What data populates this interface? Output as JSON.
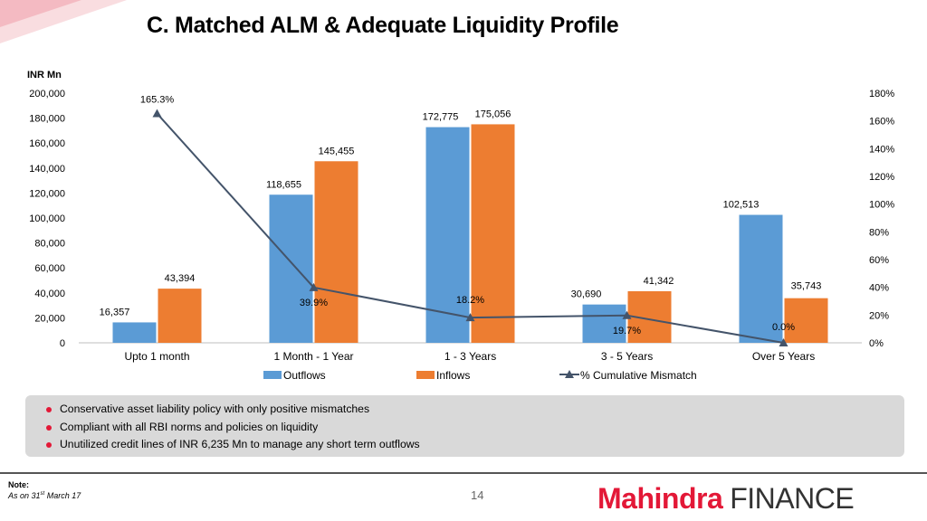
{
  "title": "C. Matched ALM & Adequate Liquidity Profile",
  "colors": {
    "outflows": "#5b9bd5",
    "inflows": "#ed7d31",
    "line": "#44546a",
    "accent": "#e31837"
  },
  "chart_data": {
    "type": "bar",
    "unit_label": "INR Mn",
    "categories": [
      "Upto 1 month",
      "1 Month - 1 Year",
      "1 - 3 Years",
      "3 - 5 Years",
      "Over 5 Years"
    ],
    "series": [
      {
        "name": "Outflows",
        "type": "bar",
        "axis": "left",
        "values": [
          16357,
          118655,
          172775,
          30690,
          102513
        ],
        "labels": [
          "16,357",
          "118,655",
          "172,775",
          "30,690",
          "102,513"
        ]
      },
      {
        "name": "Inflows",
        "type": "bar",
        "axis": "left",
        "values": [
          43394,
          145455,
          175056,
          41342,
          35743
        ],
        "labels": [
          "43,394",
          "145,455",
          "175,056",
          "41,342",
          "35,743"
        ]
      },
      {
        "name": "% Cumulative Mismatch",
        "type": "line",
        "axis": "right",
        "values": [
          165.3,
          39.9,
          18.2,
          19.7,
          0.0
        ],
        "labels": [
          "165.3%",
          "39.9%",
          "18.2%",
          "19.7%",
          "0.0%"
        ]
      }
    ],
    "y_left": {
      "min": 0,
      "max": 200000,
      "step": 20000,
      "ticks": [
        "0",
        "20,000",
        "40,000",
        "60,000",
        "80,000",
        "100,000",
        "120,000",
        "140,000",
        "160,000",
        "180,000",
        "200,000"
      ]
    },
    "y_right": {
      "min": 0,
      "max": 180,
      "step": 20,
      "ticks": [
        "0%",
        "20%",
        "40%",
        "60%",
        "80%",
        "100%",
        "120%",
        "140%",
        "160%",
        "180%"
      ]
    },
    "legend_position": "bottom",
    "grid": false
  },
  "bullets": [
    "Conservative asset liability policy with only positive mismatches",
    "Compliant with all RBI norms and policies on liquidity",
    "Unutilized credit lines of INR 6,235 Mn to manage any short term outflows"
  ],
  "footer": {
    "note_label": "Note:",
    "note_prefix": "As on 31",
    "note_sup": "st",
    "note_suffix": " March 17",
    "page_number": "14",
    "brand_part1": "Mahindra",
    "brand_part2": "FINANCE"
  }
}
